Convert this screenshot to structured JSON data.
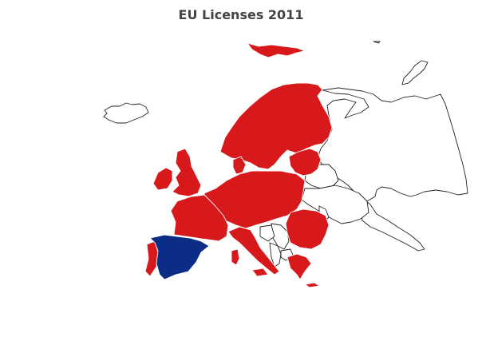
{
  "title": "EU Licenses 2011",
  "colors": {
    "member": "#d7191c",
    "highlight": "#0b2d86",
    "non_member_fill": "#ffffff",
    "border": "#222222",
    "background": "#ffffff"
  },
  "map": {
    "region": "Europe",
    "projection": "natural-earth",
    "highlighted_country": "Spain",
    "legend": "none"
  }
}
